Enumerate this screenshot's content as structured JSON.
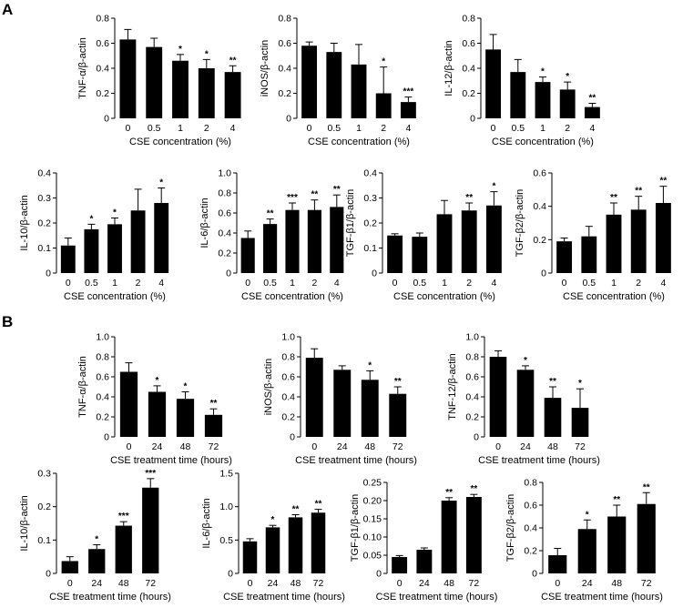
{
  "panels": [
    {
      "label": "A"
    },
    {
      "label": "B"
    }
  ],
  "chart_data": [
    {
      "type": "bar",
      "panel": "A",
      "ylabel": "TNF-α/β-actin",
      "xlabel": "CSE concentration (%)",
      "categories": [
        "0",
        "0.5",
        "1",
        "2",
        "4"
      ],
      "values": [
        0.63,
        0.57,
        0.46,
        0.4,
        0.37
      ],
      "errors": [
        0.08,
        0.07,
        0.05,
        0.07,
        0.05
      ],
      "sig": [
        "",
        "",
        "*",
        "*",
        "**"
      ],
      "ylim": [
        0,
        0.8
      ],
      "yticks": [
        "0",
        "0.2",
        "0.4",
        "0.6",
        "0.8"
      ]
    },
    {
      "type": "bar",
      "panel": "A",
      "ylabel": "iNOS/β-actin",
      "xlabel": "CSE concentration (%)",
      "categories": [
        "0",
        "0.5",
        "1",
        "2",
        "4"
      ],
      "values": [
        0.58,
        0.53,
        0.43,
        0.2,
        0.13
      ],
      "errors": [
        0.03,
        0.07,
        0.16,
        0.21,
        0.04
      ],
      "sig": [
        "",
        "",
        "",
        "*",
        "***"
      ],
      "ylim": [
        0,
        0.8
      ],
      "yticks": [
        "0",
        "0.2",
        "0.4",
        "0.6",
        "0.8"
      ]
    },
    {
      "type": "bar",
      "panel": "A",
      "ylabel": "IL-12/β-actin",
      "xlabel": "CSE concentration (%)",
      "categories": [
        "0",
        "0.5",
        "1",
        "2",
        "4"
      ],
      "values": [
        0.55,
        0.37,
        0.29,
        0.23,
        0.09
      ],
      "errors": [
        0.12,
        0.1,
        0.04,
        0.06,
        0.03
      ],
      "sig": [
        "",
        "",
        "*",
        "*",
        "**"
      ],
      "ylim": [
        0,
        0.8
      ],
      "yticks": [
        "0",
        "0.2",
        "0.4",
        "0.6",
        "0.8"
      ]
    },
    {
      "type": "bar",
      "panel": "A",
      "ylabel": "IL-10/β-actin",
      "xlabel": "CSE concentration (%)",
      "categories": [
        "0",
        "0.5",
        "1",
        "2",
        "4"
      ],
      "values": [
        0.11,
        0.175,
        0.195,
        0.25,
        0.28
      ],
      "errors": [
        0.03,
        0.02,
        0.025,
        0.085,
        0.06
      ],
      "sig": [
        "",
        "*",
        "*",
        "",
        "*"
      ],
      "ylim": [
        0,
        0.4
      ],
      "yticks": [
        "0",
        "0.1",
        "0.2",
        "0.3",
        "0.4"
      ]
    },
    {
      "type": "bar",
      "panel": "A",
      "ylabel": "IL-6/β-actin",
      "xlabel": "CSE concentration (%)",
      "categories": [
        "0",
        "0.5",
        "1",
        "2",
        "4"
      ],
      "values": [
        0.35,
        0.49,
        0.63,
        0.63,
        0.66
      ],
      "errors": [
        0.07,
        0.05,
        0.07,
        0.1,
        0.12
      ],
      "sig": [
        "",
        "**",
        "***",
        "**",
        "**"
      ],
      "ylim": [
        0,
        1.0
      ],
      "yticks": [
        "0",
        "0.2",
        "0.4",
        "0.6",
        "0.8",
        "1.0"
      ]
    },
    {
      "type": "bar",
      "panel": "A",
      "ylabel": "TGF-β1/β-actin",
      "xlabel": "CSE concentration (%)",
      "categories": [
        "0",
        "0.5",
        "1",
        "2",
        "4"
      ],
      "values": [
        0.15,
        0.145,
        0.235,
        0.25,
        0.27
      ],
      "errors": [
        0.007,
        0.015,
        0.055,
        0.03,
        0.055
      ],
      "sig": [
        "",
        "",
        "",
        "**",
        "*"
      ],
      "ylim": [
        0,
        0.4
      ],
      "yticks": [
        "0",
        "0.1",
        "0.2",
        "0.3",
        "0.4"
      ]
    },
    {
      "type": "bar",
      "panel": "A",
      "ylabel": "TGF-β2/β-actin",
      "xlabel": "CSE concentration (%)",
      "categories": [
        "0",
        "0.5",
        "1",
        "2",
        "4"
      ],
      "values": [
        0.19,
        0.22,
        0.35,
        0.38,
        0.42
      ],
      "errors": [
        0.02,
        0.06,
        0.07,
        0.08,
        0.1
      ],
      "sig": [
        "",
        "",
        "**",
        "**",
        "**"
      ],
      "ylim": [
        0,
        0.6
      ],
      "yticks": [
        "0",
        "0.2",
        "0.4",
        "0.6"
      ]
    },
    {
      "type": "bar",
      "panel": "B",
      "ylabel": "TNF-α/β-actin",
      "xlabel": "CSE treatment time (hours)",
      "categories": [
        "0",
        "24",
        "48",
        "72"
      ],
      "values": [
        0.65,
        0.45,
        0.38,
        0.22
      ],
      "errors": [
        0.09,
        0.06,
        0.07,
        0.06
      ],
      "sig": [
        "",
        "*",
        "*",
        "**"
      ],
      "ylim": [
        0,
        1.0
      ],
      "yticks": [
        "0",
        "0.2",
        "0.4",
        "0.6",
        "0.8",
        "1.0"
      ]
    },
    {
      "type": "bar",
      "panel": "B",
      "ylabel": "iNOS/β-actin",
      "xlabel": "CSE treatment time (hours)",
      "categories": [
        "0",
        "24",
        "48",
        "72"
      ],
      "values": [
        0.79,
        0.67,
        0.57,
        0.43
      ],
      "errors": [
        0.09,
        0.04,
        0.09,
        0.07
      ],
      "sig": [
        "",
        "",
        "*",
        "**"
      ],
      "ylim": [
        0,
        1.0
      ],
      "yticks": [
        "0",
        "0.2",
        "0.4",
        "0.6",
        "0.8",
        "1.0"
      ]
    },
    {
      "type": "bar",
      "panel": "B",
      "ylabel": "TNF-12/β-actin",
      "xlabel": "CSE treatment time (hours)",
      "categories": [
        "0",
        "24",
        "48",
        "72"
      ],
      "values": [
        0.8,
        0.67,
        0.39,
        0.29
      ],
      "errors": [
        0.06,
        0.04,
        0.11,
        0.19
      ],
      "sig": [
        "",
        "*",
        "**",
        "*"
      ],
      "ylim": [
        0,
        1.0
      ],
      "yticks": [
        "0",
        "0.2",
        "0.4",
        "0.6",
        "0.8",
        "1.0"
      ]
    },
    {
      "type": "bar",
      "panel": "B",
      "ylabel": "IL-10/β-actin",
      "xlabel": "CSE treatment time (hours)",
      "categories": [
        "0",
        "24",
        "48",
        "72"
      ],
      "values": [
        0.037,
        0.073,
        0.143,
        0.257
      ],
      "errors": [
        0.013,
        0.013,
        0.012,
        0.027
      ],
      "sig": [
        "",
        "*",
        "***",
        "***"
      ],
      "ylim": [
        0,
        0.3
      ],
      "yticks": [
        "0",
        "0.1",
        "0.2",
        "0.3"
      ]
    },
    {
      "type": "bar",
      "panel": "B",
      "ylabel": "IL-6/β-actin",
      "xlabel": "CSE treatment time (hours)",
      "categories": [
        "0",
        "24",
        "48",
        "72"
      ],
      "values": [
        0.48,
        0.69,
        0.84,
        0.91
      ],
      "errors": [
        0.04,
        0.03,
        0.04,
        0.05
      ],
      "sig": [
        "",
        "*",
        "**",
        "**"
      ],
      "ylim": [
        0,
        1.5
      ],
      "yticks": [
        "0",
        "0.5",
        "1.0",
        "1.5"
      ]
    },
    {
      "type": "bar",
      "panel": "B",
      "ylabel": "TGF-β1/β-actin",
      "xlabel": "CSE treatment time (hours)",
      "categories": [
        "0",
        "24",
        "48",
        "72"
      ],
      "values": [
        0.045,
        0.065,
        0.2,
        0.21
      ],
      "errors": [
        0.004,
        0.005,
        0.008,
        0.007
      ],
      "sig": [
        "",
        "",
        "**",
        "**"
      ],
      "ylim": [
        0,
        0.25
      ],
      "yticks": [
        "0",
        "0.05",
        "0.10",
        "0.15",
        "0.20",
        "0.25"
      ]
    },
    {
      "type": "bar",
      "panel": "B",
      "ylabel": "TGF-β2/β-actin",
      "xlabel": "CSE treatment time (hours)",
      "categories": [
        "0",
        "24",
        "48",
        "72"
      ],
      "values": [
        0.16,
        0.39,
        0.5,
        0.61
      ],
      "errors": [
        0.06,
        0.08,
        0.1,
        0.1
      ],
      "sig": [
        "",
        "*",
        "**",
        "**"
      ],
      "ylim": [
        0,
        0.8
      ],
      "yticks": [
        "0",
        "0.2",
        "0.4",
        "0.6",
        "0.8"
      ]
    }
  ]
}
